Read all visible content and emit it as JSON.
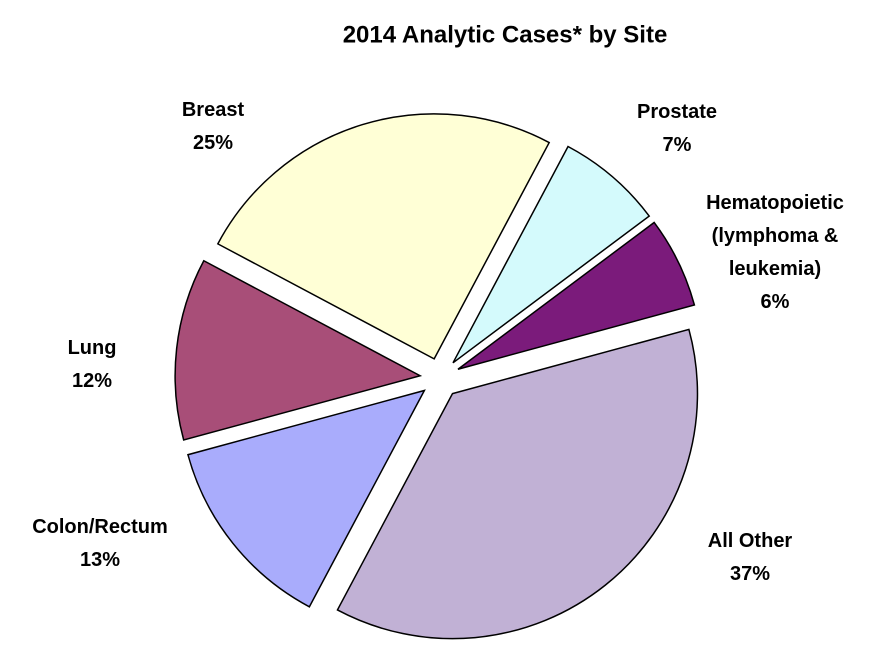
{
  "chart_data": {
    "type": "pie",
    "title": "2014 Analytic Cases* by Site",
    "categories": [
      "Prostate",
      "Hematopoietic (lymphoma & leukemia)",
      "All Other",
      "Colon/Rectum",
      "Lung",
      "Breast"
    ],
    "values": [
      7,
      6,
      37,
      13,
      12,
      25
    ],
    "value_labels": [
      "7%",
      "6%",
      "37%",
      "13%",
      "12%",
      "25%"
    ],
    "colors": [
      "#d4fafc",
      "#7b1b7b",
      "#c1b1d5",
      "#a9acfc",
      "#a84e78",
      "#ffffd6"
    ]
  }
}
